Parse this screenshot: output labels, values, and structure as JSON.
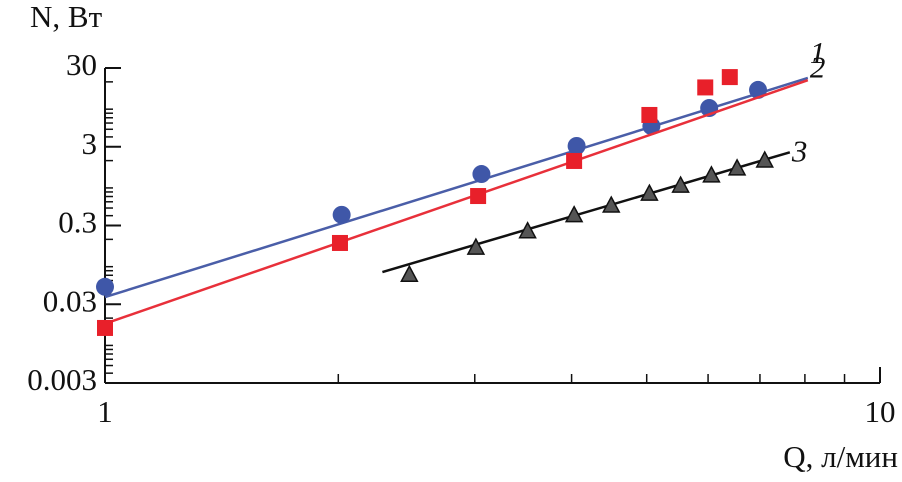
{
  "chart_data": {
    "type": "scatter",
    "xlabel": "Q, л/мин",
    "ylabel": "N, Вт",
    "xlog": true,
    "ylog": true,
    "xlim": [
      1,
      10
    ],
    "ylim": [
      0.003,
      30
    ],
    "xticks": [
      1,
      10
    ],
    "yticks": [
      0.003,
      0.03,
      0.3,
      3,
      30
    ],
    "xminorticks": [
      2,
      3,
      4,
      5,
      6,
      7,
      8,
      9
    ],
    "yminorticks": [
      0.004,
      0.005,
      0.006,
      0.007,
      0.008,
      0.009,
      0.02,
      0.04,
      0.05,
      0.06,
      0.07,
      0.08,
      0.09,
      0.2,
      0.4,
      0.5,
      0.6,
      0.7,
      0.8,
      0.9,
      2,
      4,
      5,
      6,
      7,
      8,
      9,
      20
    ],
    "series": [
      {
        "name": "1",
        "color": "#3f57a8",
        "marker": "circle",
        "line_color": "#4a5ea8",
        "x": [
          1,
          2.02,
          3.06,
          4.06,
          5.07,
          6.02,
          6.96
        ],
        "values": [
          0.05,
          0.41,
          1.35,
          3.07,
          5.5,
          9.3,
          15.8
        ],
        "fit": {
          "x": [
            1,
            8.07
          ],
          "values": [
            0.037,
            22.4
          ]
        }
      },
      {
        "name": "2",
        "color": "#e8202a",
        "marker": "square",
        "line_color": "#e8303a",
        "x": [
          1,
          2.01,
          3.03,
          4.03,
          5.04,
          5.95,
          6.4
        ],
        "values": [
          0.015,
          0.18,
          0.71,
          1.98,
          7.6,
          17,
          23
        ],
        "fit": {
          "x": [
            1,
            8.07
          ],
          "values": [
            0.017,
            21
          ]
        }
      },
      {
        "name": "3",
        "color": "#555555",
        "marker": "triangle",
        "line_color": "#111111",
        "x": [
          2.47,
          3.01,
          3.51,
          4.03,
          4.5,
          5.04,
          5.53,
          6.06,
          6.54,
          7.1
        ],
        "values": [
          0.07,
          0.155,
          0.25,
          0.4,
          0.53,
          0.75,
          0.95,
          1.28,
          1.57,
          1.98
        ],
        "fit": {
          "x": [
            2.28,
            7.65
          ],
          "values": [
            0.077,
            2.55
          ]
        }
      }
    ]
  }
}
